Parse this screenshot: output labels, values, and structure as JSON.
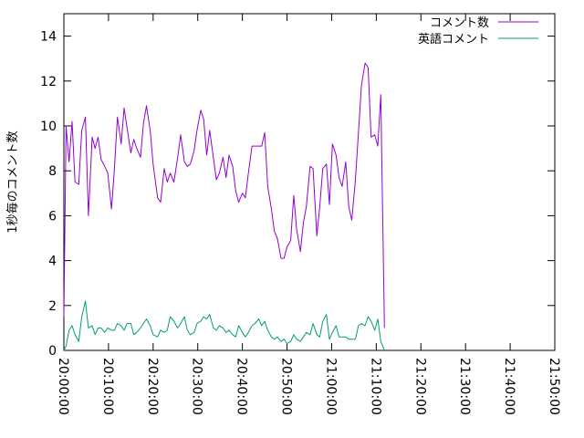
{
  "chart_data": {
    "type": "line",
    "title": "",
    "xlabel": "",
    "ylabel": "1秒毎のコメント数",
    "xlim": [
      "20:00:00",
      "21:50:00"
    ],
    "ylim": [
      0,
      15
    ],
    "xticks": [
      "20:00:00",
      "20:10:00",
      "20:20:00",
      "20:30:00",
      "20:40:00",
      "20:50:00",
      "21:00:00",
      "21:10:00",
      "21:20:00",
      "21:30:00",
      "21:40:00",
      "21:50:00"
    ],
    "yticks": [
      0,
      2,
      4,
      6,
      8,
      10,
      12,
      14
    ],
    "grid": false,
    "legend_position": "top-right",
    "series": [
      {
        "name": "コメント数",
        "color": "#9400d3",
        "points": [
          [
            "20:00:00",
            1.5
          ],
          [
            "20:00:30",
            10.0
          ],
          [
            "20:01:10",
            8.4
          ],
          [
            "20:01:50",
            10.2
          ],
          [
            "20:02:30",
            7.5
          ],
          [
            "20:03:20",
            7.4
          ],
          [
            "20:04:00",
            9.8
          ],
          [
            "20:04:50",
            10.4
          ],
          [
            "20:05:30",
            6.0
          ],
          [
            "20:06:20",
            9.5
          ],
          [
            "20:07:00",
            9.0
          ],
          [
            "20:07:40",
            9.5
          ],
          [
            "20:08:20",
            8.5
          ],
          [
            "20:09:10",
            8.2
          ],
          [
            "20:09:50",
            7.9
          ],
          [
            "20:10:40",
            6.3
          ],
          [
            "20:11:20",
            8.1
          ],
          [
            "20:12:00",
            10.4
          ],
          [
            "20:12:50",
            9.2
          ],
          [
            "20:13:30",
            10.8
          ],
          [
            "20:14:10",
            9.9
          ],
          [
            "20:15:00",
            8.8
          ],
          [
            "20:15:40",
            9.4
          ],
          [
            "20:16:20",
            9.0
          ],
          [
            "20:17:10",
            8.6
          ],
          [
            "20:17:50",
            10.1
          ],
          [
            "20:18:30",
            10.9
          ],
          [
            "20:19:20",
            9.8
          ],
          [
            "20:20:00",
            8.3
          ],
          [
            "20:21:00",
            6.8
          ],
          [
            "20:21:40",
            6.6
          ],
          [
            "20:22:30",
            8.1
          ],
          [
            "20:23:10",
            7.5
          ],
          [
            "20:23:50",
            7.9
          ],
          [
            "20:24:40",
            7.5
          ],
          [
            "20:25:30",
            8.6
          ],
          [
            "20:26:10",
            9.6
          ],
          [
            "20:27:00",
            8.4
          ],
          [
            "20:27:40",
            8.2
          ],
          [
            "20:28:20",
            8.3
          ],
          [
            "20:29:10",
            8.9
          ],
          [
            "20:29:50",
            9.8
          ],
          [
            "20:30:40",
            10.7
          ],
          [
            "20:31:20",
            10.3
          ],
          [
            "20:32:00",
            8.7
          ],
          [
            "20:32:40",
            9.8
          ],
          [
            "20:33:30",
            8.6
          ],
          [
            "20:34:10",
            7.6
          ],
          [
            "20:34:50",
            7.9
          ],
          [
            "20:35:40",
            8.6
          ],
          [
            "20:36:20",
            7.7
          ],
          [
            "20:37:00",
            8.7
          ],
          [
            "20:37:50",
            8.2
          ],
          [
            "20:38:30",
            7.1
          ],
          [
            "20:39:10",
            6.6
          ],
          [
            "20:40:00",
            7.0
          ],
          [
            "20:40:40",
            6.8
          ],
          [
            "20:41:20",
            7.9
          ],
          [
            "20:42:10",
            9.1
          ],
          [
            "20:42:50",
            9.1
          ],
          [
            "20:43:40",
            9.1
          ],
          [
            "20:44:20",
            9.1
          ],
          [
            "20:45:00",
            9.7
          ],
          [
            "20:45:40",
            7.3
          ],
          [
            "20:46:30",
            6.3
          ],
          [
            "20:47:10",
            5.3
          ],
          [
            "20:47:50",
            5.0
          ],
          [
            "20:48:40",
            4.1
          ],
          [
            "20:49:20",
            4.1
          ],
          [
            "20:50:00",
            4.6
          ],
          [
            "20:50:50",
            4.9
          ],
          [
            "20:51:30",
            6.9
          ],
          [
            "20:52:10",
            5.4
          ],
          [
            "20:53:00",
            4.4
          ],
          [
            "20:53:40",
            5.7
          ],
          [
            "20:54:20",
            6.4
          ],
          [
            "20:55:10",
            8.2
          ],
          [
            "20:55:50",
            8.1
          ],
          [
            "20:56:40",
            5.1
          ],
          [
            "20:57:20",
            6.4
          ],
          [
            "20:58:00",
            8.1
          ],
          [
            "20:58:50",
            8.3
          ],
          [
            "20:59:30",
            6.5
          ],
          [
            "21:00:10",
            9.2
          ],
          [
            "21:01:00",
            8.7
          ],
          [
            "21:01:40",
            7.7
          ],
          [
            "21:02:20",
            7.3
          ],
          [
            "21:03:10",
            8.4
          ],
          [
            "21:03:50",
            6.4
          ],
          [
            "21:04:30",
            5.8
          ],
          [
            "21:05:20",
            7.6
          ],
          [
            "21:06:00",
            9.7
          ],
          [
            "21:06:40",
            11.8
          ],
          [
            "21:07:30",
            12.8
          ],
          [
            "21:08:10",
            12.6
          ],
          [
            "21:08:50",
            9.5
          ],
          [
            "21:09:40",
            9.6
          ],
          [
            "21:10:20",
            9.1
          ],
          [
            "21:11:00",
            11.4
          ],
          [
            "21:11:50",
            1.0
          ]
        ]
      },
      {
        "name": "英語コメント",
        "color": "#009e73",
        "points": [
          [
            "20:00:00",
            0.0
          ],
          [
            "20:00:30",
            0.2
          ],
          [
            "20:01:10",
            0.9
          ],
          [
            "20:01:50",
            1.1
          ],
          [
            "20:02:30",
            0.7
          ],
          [
            "20:03:20",
            0.4
          ],
          [
            "20:04:00",
            1.5
          ],
          [
            "20:04:50",
            2.2
          ],
          [
            "20:05:30",
            1.0
          ],
          [
            "20:06:20",
            1.1
          ],
          [
            "20:07:00",
            0.7
          ],
          [
            "20:07:40",
            1.0
          ],
          [
            "20:08:20",
            1.0
          ],
          [
            "20:09:10",
            0.8
          ],
          [
            "20:09:50",
            1.0
          ],
          [
            "20:10:40",
            0.9
          ],
          [
            "20:11:20",
            0.9
          ],
          [
            "20:12:00",
            1.2
          ],
          [
            "20:12:50",
            1.1
          ],
          [
            "20:13:30",
            0.9
          ],
          [
            "20:14:10",
            1.2
          ],
          [
            "20:15:00",
            1.2
          ],
          [
            "20:15:40",
            0.7
          ],
          [
            "20:16:20",
            0.8
          ],
          [
            "20:17:10",
            1.0
          ],
          [
            "20:17:50",
            1.2
          ],
          [
            "20:18:30",
            1.4
          ],
          [
            "20:19:20",
            1.1
          ],
          [
            "20:20:00",
            0.7
          ],
          [
            "20:21:00",
            0.6
          ],
          [
            "20:21:40",
            0.9
          ],
          [
            "20:22:30",
            0.8
          ],
          [
            "20:23:10",
            0.9
          ],
          [
            "20:23:50",
            1.5
          ],
          [
            "20:24:40",
            1.3
          ],
          [
            "20:25:30",
            1.0
          ],
          [
            "20:26:10",
            1.2
          ],
          [
            "20:27:00",
            1.5
          ],
          [
            "20:27:40",
            0.9
          ],
          [
            "20:28:20",
            0.7
          ],
          [
            "20:29:10",
            0.8
          ],
          [
            "20:29:50",
            1.2
          ],
          [
            "20:30:40",
            1.3
          ],
          [
            "20:31:20",
            1.5
          ],
          [
            "20:32:00",
            1.4
          ],
          [
            "20:32:40",
            1.6
          ],
          [
            "20:33:30",
            1.0
          ],
          [
            "20:34:10",
            0.9
          ],
          [
            "20:34:50",
            1.1
          ],
          [
            "20:35:40",
            1.0
          ],
          [
            "20:36:20",
            0.8
          ],
          [
            "20:37:00",
            0.9
          ],
          [
            "20:37:50",
            0.7
          ],
          [
            "20:38:30",
            0.6
          ],
          [
            "20:39:10",
            1.1
          ],
          [
            "20:40:00",
            0.8
          ],
          [
            "20:40:40",
            0.6
          ],
          [
            "20:41:20",
            0.8
          ],
          [
            "20:42:10",
            1.1
          ],
          [
            "20:42:50",
            1.2
          ],
          [
            "20:43:40",
            1.4
          ],
          [
            "20:44:20",
            1.1
          ],
          [
            "20:45:00",
            1.3
          ],
          [
            "20:45:40",
            0.9
          ],
          [
            "20:46:30",
            0.6
          ],
          [
            "20:47:10",
            0.5
          ],
          [
            "20:47:50",
            0.6
          ],
          [
            "20:48:40",
            0.4
          ],
          [
            "20:49:20",
            0.5
          ],
          [
            "20:50:00",
            0.3
          ],
          [
            "20:50:50",
            0.4
          ],
          [
            "20:51:30",
            0.7
          ],
          [
            "20:52:10",
            0.5
          ],
          [
            "20:53:00",
            0.4
          ],
          [
            "20:53:40",
            0.6
          ],
          [
            "20:54:20",
            0.8
          ],
          [
            "20:55:10",
            0.7
          ],
          [
            "20:55:50",
            1.2
          ],
          [
            "20:56:40",
            0.7
          ],
          [
            "20:57:20",
            0.6
          ],
          [
            "20:58:00",
            1.3
          ],
          [
            "20:58:50",
            1.6
          ],
          [
            "20:59:30",
            0.5
          ],
          [
            "21:00:10",
            0.8
          ],
          [
            "21:01:00",
            1.1
          ],
          [
            "21:01:40",
            0.6
          ],
          [
            "21:02:20",
            0.6
          ],
          [
            "21:03:10",
            0.6
          ],
          [
            "21:03:50",
            0.5
          ],
          [
            "21:04:30",
            0.5
          ],
          [
            "21:05:20",
            0.5
          ],
          [
            "21:06:00",
            1.1
          ],
          [
            "21:06:40",
            1.2
          ],
          [
            "21:07:30",
            1.1
          ],
          [
            "21:08:10",
            1.5
          ],
          [
            "21:08:50",
            1.3
          ],
          [
            "21:09:40",
            0.9
          ],
          [
            "21:10:20",
            1.4
          ],
          [
            "21:11:00",
            0.4
          ],
          [
            "21:11:50",
            0.0
          ]
        ]
      }
    ]
  }
}
